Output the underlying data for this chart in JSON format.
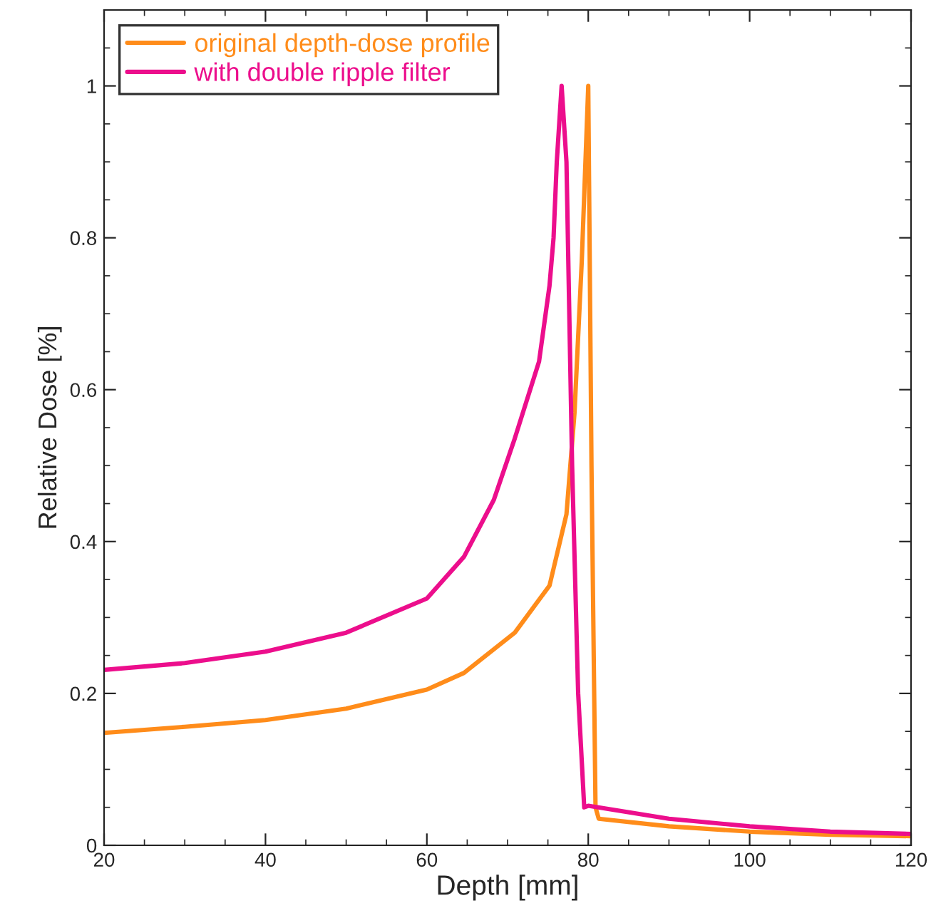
{
  "chart_data": {
    "type": "line",
    "xlabel": "Depth [mm]",
    "ylabel": "Relative Dose [%]",
    "xlim": [
      20,
      120
    ],
    "ylim": [
      0,
      1.1
    ],
    "xticks": [
      20,
      40,
      60,
      80,
      100,
      120
    ],
    "yticks": [
      0,
      0.2,
      0.4,
      0.6,
      0.8,
      1
    ],
    "grid": false,
    "legend": "top left",
    "marker": "none",
    "line_style": "solid",
    "series": [
      {
        "name": "original depth-dose profile",
        "color": "#ff8c1a",
        "x": [
          20,
          30,
          40,
          50,
          60,
          64.6,
          70.9,
          75.2,
          77.3,
          78.3,
          79.2,
          80.0,
          80.4,
          80.9,
          81.3,
          90,
          100,
          110,
          120
        ],
        "values": [
          0.148,
          0.156,
          0.165,
          0.18,
          0.205,
          0.227,
          0.28,
          0.342,
          0.436,
          0.57,
          0.77,
          1.0,
          0.5,
          0.05,
          0.035,
          0.025,
          0.018,
          0.014,
          0.012
        ]
      },
      {
        "name": "with double ripple filter",
        "color": "#ec0e8c",
        "x": [
          20,
          30,
          40,
          50,
          60,
          64.6,
          68.3,
          70.9,
          73.9,
          75.2,
          75.7,
          76.1,
          76.7,
          77.3,
          78.0,
          78.75,
          79.5,
          80,
          90,
          100,
          110,
          120
        ],
        "values": [
          0.231,
          0.24,
          0.255,
          0.28,
          0.325,
          0.38,
          0.455,
          0.536,
          0.637,
          0.737,
          0.8,
          0.9,
          1.0,
          0.9,
          0.5,
          0.2,
          0.05,
          0.052,
          0.035,
          0.025,
          0.018,
          0.015
        ]
      }
    ]
  }
}
